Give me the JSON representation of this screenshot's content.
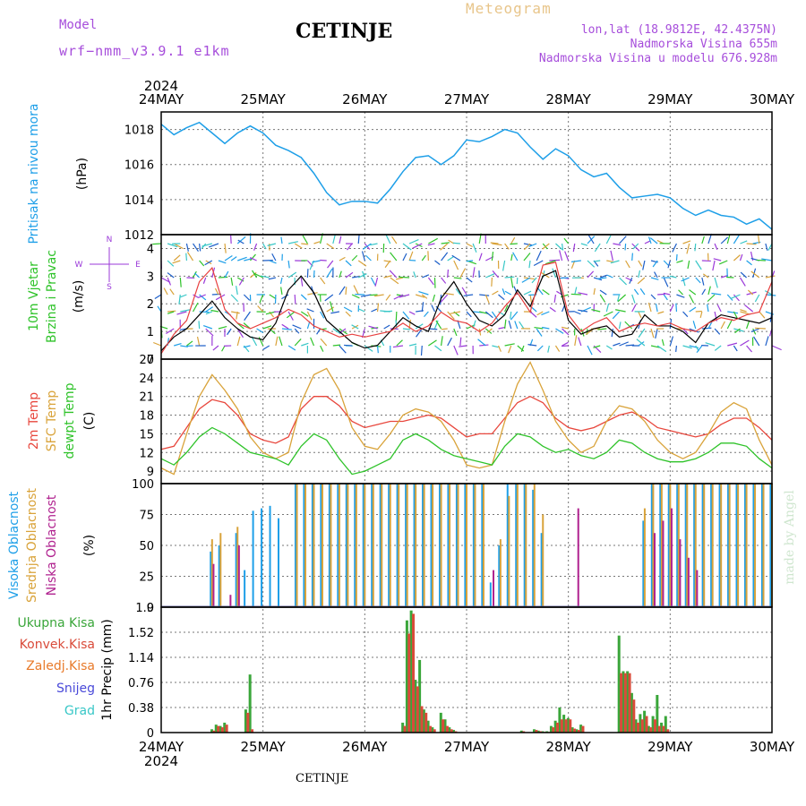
{
  "header": {
    "model_label": "Model",
    "model_name": "wrf−nmm_v3.9.1  e1km",
    "station": "CETINJE",
    "meteogram_label": "Meteogram",
    "lonlat": "lon,lat (18.9812E, 42.4375N)",
    "elevation": "Nadmorska Visina 655m",
    "model_elevation": "Nadmorska Visina u modelu 676.928m",
    "year": "2024",
    "footer_station": "CETINJE",
    "credit": "made by Angel"
  },
  "colors": {
    "pressure": "#1e9fe8",
    "temp": "#e8473d",
    "sfc": "#d9a33a",
    "dew": "#2fc32a",
    "high_cloud": "#1e9fe8",
    "mid_cloud": "#d9a33a",
    "low_cloud": "#b0228f",
    "total_precip": "#3aa63a",
    "conv_precip": "#d94b3a",
    "frozen": "#e87a2a",
    "snow": "#4a4ad9",
    "grad": "#38c7c7",
    "wind_speed": "#000000",
    "gust": "#e84040",
    "wind_legend": "#9b3ad9"
  },
  "x_axis": {
    "start": "2024-05-24 00:00",
    "end": "2024-05-30 00:00",
    "ticks": [
      "24MAY",
      "25MAY",
      "26MAY",
      "27MAY",
      "28MAY",
      "29MAY",
      "30MAY"
    ],
    "year_label": "2024"
  },
  "wind_legend": {
    "n": "N",
    "s": "S",
    "w": "W",
    "e": "E"
  },
  "chart_data": [
    {
      "type": "line",
      "panel": "pressure",
      "ylabel": [
        "Pritisak na nivou mora",
        "(hPa)"
      ],
      "ylim": [
        1012,
        1019
      ],
      "yticks": [
        1012,
        1014,
        1016,
        1018
      ],
      "grid": true,
      "x_hours": [
        0,
        3,
        6,
        9,
        12,
        15,
        18,
        21,
        24,
        27,
        30,
        33,
        36,
        39,
        42,
        45,
        48,
        51,
        54,
        57,
        60,
        63,
        66,
        69,
        72,
        75,
        78,
        81,
        84,
        87,
        90,
        93,
        96,
        99,
        102,
        105,
        108,
        111,
        114,
        117,
        120,
        123,
        126,
        129,
        132,
        135,
        138,
        141,
        144
      ],
      "series": [
        {
          "values": [
            1018.3,
            1017.7,
            1018.1,
            1018.4,
            1017.8,
            1017.2,
            1017.8,
            1018.2,
            1017.8,
            1017.1,
            1016.8,
            1016.4,
            1015.5,
            1014.4,
            1013.7,
            1013.9,
            1013.9,
            1013.8,
            1014.6,
            1015.6,
            1016.4,
            1016.5,
            1016,
            1016.5,
            1017.4,
            1017.3,
            1017.6,
            1018,
            1017.8,
            1017,
            1016.3,
            1016.9,
            1016.5,
            1015.7,
            1015.3,
            1015.5,
            1014.7,
            1014.1,
            1014.2,
            1014.3,
            1014.1,
            1013.5,
            1013.1,
            1013.4,
            1013.1,
            1013,
            1012.6,
            1012.9,
            1012.3
          ]
        }
      ]
    },
    {
      "type": "line",
      "panel": "wind",
      "ylabel": [
        "10m Vjetar",
        "Brzina i Pravac",
        "(m/s)"
      ],
      "ylim": [
        0,
        4.5
      ],
      "yticks": [
        0,
        1,
        2,
        3,
        4
      ],
      "grid": true,
      "x_hours": [
        0,
        3,
        6,
        9,
        12,
        15,
        18,
        21,
        24,
        27,
        30,
        33,
        36,
        39,
        42,
        45,
        48,
        51,
        54,
        57,
        60,
        63,
        66,
        69,
        72,
        75,
        78,
        81,
        84,
        87,
        90,
        93,
        96,
        99,
        102,
        105,
        108,
        111,
        114,
        117,
        120,
        123,
        126,
        129,
        132,
        135,
        138,
        141,
        144
      ],
      "series": [
        {
          "name": "speed",
          "values": [
            0.3,
            0.8,
            1.1,
            1.6,
            2.1,
            1.5,
            1.1,
            0.8,
            0.7,
            1.3,
            2.5,
            3.0,
            2.4,
            1.4,
            1.0,
            0.6,
            0.4,
            0.5,
            1.0,
            1.5,
            1.2,
            1.0,
            2.2,
            2.8,
            2.0,
            1.4,
            1.2,
            1.6,
            2.5,
            1.9,
            3.0,
            3.2,
            1.4,
            0.9,
            1.1,
            1.2,
            0.8,
            0.9,
            1.6,
            1.2,
            1.2,
            1.0,
            0.6,
            1.3,
            1.6,
            1.5,
            1.4,
            1.3,
            1.5
          ]
        },
        {
          "name": "gust",
          "values": [
            0.2,
            0.9,
            1.4,
            2.8,
            3.3,
            1.8,
            1.3,
            1.1,
            1.3,
            1.5,
            1.8,
            1.6,
            1.2,
            1.0,
            0.8,
            0.9,
            0.8,
            0.9,
            1.0,
            1.3,
            1.0,
            1.2,
            1.7,
            1.4,
            1.3,
            1.0,
            1.3,
            1.9,
            2.4,
            1.7,
            3.4,
            3.5,
            1.6,
            1.0,
            1.3,
            1.5,
            1.0,
            1.2,
            1.3,
            1.2,
            1.3,
            1.1,
            1.0,
            1.3,
            1.5,
            1.4,
            1.6,
            1.7,
            2.8
          ]
        }
      ]
    },
    {
      "type": "line",
      "panel": "temperature",
      "ylabel": [
        "2m Temp",
        "SFC Temp",
        "dewpt Temp",
        "(C)"
      ],
      "ylim": [
        7,
        27
      ],
      "yticks": [
        9,
        12,
        15,
        18,
        21,
        24,
        27
      ],
      "grid": true,
      "x_hours": [
        0,
        3,
        6,
        9,
        12,
        15,
        18,
        21,
        24,
        27,
        30,
        33,
        36,
        39,
        42,
        45,
        48,
        51,
        54,
        57,
        60,
        63,
        66,
        69,
        72,
        75,
        78,
        81,
        84,
        87,
        90,
        93,
        96,
        99,
        102,
        105,
        108,
        111,
        114,
        117,
        120,
        123,
        126,
        129,
        132,
        135,
        138,
        141,
        144
      ],
      "series": [
        {
          "name": "2m Temp",
          "values": [
            12.5,
            13,
            16,
            19,
            20.5,
            20,
            18,
            15,
            14,
            13.5,
            14.5,
            19,
            21,
            21,
            19.5,
            17,
            16,
            16.5,
            17,
            17,
            17.5,
            18,
            17.5,
            16,
            14.5,
            15,
            15,
            17.5,
            20,
            21,
            20,
            17.5,
            16,
            15.5,
            16,
            17,
            18,
            18.5,
            17.5,
            16,
            15.5,
            15,
            14.5,
            15,
            16.5,
            17.5,
            17.5,
            16,
            14
          ]
        },
        {
          "name": "SFC Temp",
          "values": [
            9.5,
            8.5,
            15,
            21,
            24.5,
            22,
            19,
            14.5,
            12,
            11,
            12,
            20,
            24.5,
            25.5,
            22,
            16,
            13,
            12.5,
            15,
            18,
            19,
            18.5,
            17,
            14,
            10,
            9.5,
            10,
            17,
            23,
            26.5,
            22,
            17,
            14,
            12,
            13,
            17,
            19.5,
            19,
            17,
            14,
            12,
            11,
            12,
            15,
            18.5,
            20,
            19,
            14,
            10
          ]
        },
        {
          "name": "dewpt Temp",
          "values": [
            11,
            10,
            12,
            14.5,
            16,
            15,
            13.5,
            12,
            11.5,
            11,
            10,
            13,
            15,
            14,
            11,
            8.5,
            9,
            10,
            11,
            14,
            15,
            14,
            12.5,
            11.5,
            11,
            10.5,
            10,
            13,
            15,
            14.5,
            13,
            12,
            12.5,
            11.5,
            11,
            12,
            14,
            13.5,
            12,
            11,
            10.5,
            10.5,
            11,
            12,
            13.5,
            13.5,
            13,
            11,
            9.5
          ]
        }
      ]
    },
    {
      "type": "bar",
      "panel": "clouds",
      "ylabel": [
        "Visoka Oblacnost",
        "Srednja Oblacnost",
        "Niska Oblacnost",
        "(%)"
      ],
      "ylim": [
        0,
        100
      ],
      "yticks": [
        0,
        25,
        50,
        75,
        100
      ],
      "grid": true,
      "x_hours": [
        12,
        14,
        16,
        18,
        20,
        22,
        24,
        26,
        28,
        30,
        32,
        34,
        36,
        38,
        40,
        42,
        44,
        46,
        48,
        50,
        52,
        54,
        56,
        58,
        60,
        62,
        64,
        66,
        68,
        70,
        72,
        74,
        76,
        78,
        80,
        82,
        84,
        86,
        88,
        90,
        92,
        94,
        96,
        98,
        100,
        102,
        104,
        106,
        108,
        110,
        112,
        114,
        116,
        118,
        120,
        122,
        124,
        126,
        128,
        130,
        132,
        134,
        136,
        138,
        140,
        142,
        144
      ],
      "series": [
        {
          "name": "Visoka Oblacnost",
          "values": [
            45,
            50,
            0,
            60,
            30,
            78,
            80,
            82,
            72,
            0,
            100,
            100,
            100,
            100,
            100,
            100,
            100,
            100,
            100,
            100,
            100,
            100,
            100,
            100,
            100,
            100,
            100,
            100,
            100,
            100,
            100,
            100,
            100,
            20,
            50,
            100,
            100,
            100,
            95,
            60,
            0,
            0,
            0,
            0,
            0,
            0,
            0,
            0,
            0,
            0,
            0,
            70,
            100,
            100,
            100,
            100,
            100,
            100,
            100,
            100,
            100,
            100,
            100,
            100,
            100,
            100,
            100
          ]
        },
        {
          "name": "Srednja Oblacnost",
          "values": [
            55,
            60,
            0,
            65,
            0,
            0,
            0,
            0,
            0,
            0,
            100,
            100,
            100,
            100,
            100,
            100,
            100,
            100,
            100,
            100,
            100,
            100,
            100,
            100,
            100,
            100,
            100,
            100,
            100,
            100,
            100,
            100,
            100,
            0,
            55,
            90,
            100,
            100,
            100,
            75,
            0,
            0,
            0,
            0,
            0,
            0,
            0,
            0,
            0,
            0,
            0,
            80,
            100,
            100,
            100,
            100,
            100,
            100,
            100,
            100,
            100,
            100,
            100,
            100,
            100,
            100,
            100
          ]
        },
        {
          "name": "Niska Oblacnost",
          "values": [
            35,
            0,
            10,
            50,
            0,
            0,
            0,
            0,
            0,
            0,
            0,
            0,
            0,
            0,
            0,
            0,
            0,
            0,
            0,
            0,
            0,
            0,
            0,
            0,
            0,
            0,
            0,
            0,
            0,
            0,
            0,
            0,
            0,
            30,
            0,
            0,
            0,
            0,
            0,
            0,
            0,
            0,
            0,
            80,
            0,
            0,
            0,
            0,
            0,
            0,
            0,
            0,
            60,
            70,
            80,
            55,
            40,
            30,
            0,
            0,
            0,
            0,
            0,
            0,
            0,
            0,
            0
          ]
        }
      ]
    },
    {
      "type": "bar",
      "panel": "precipitation",
      "ylabel": [
        "Ukupna Kisa",
        "Konvek.Kisa",
        "Zaledj.Kisa",
        "Snijeg",
        "Grad",
        "1hr Precip (mm)"
      ],
      "ylim": [
        0,
        1.9
      ],
      "yticks": [
        0,
        0.38,
        0.76,
        1.14,
        1.52,
        1.9
      ],
      "grid": true,
      "x_hours": [
        12,
        13,
        14,
        15,
        20,
        21,
        57,
        58,
        59,
        60,
        61,
        62,
        63,
        64,
        66,
        67,
        68,
        69,
        85,
        88,
        89,
        90,
        91,
        92,
        93,
        94,
        95,
        96,
        97,
        98,
        99,
        108,
        109,
        110,
        111,
        112,
        113,
        114,
        115,
        116,
        117,
        118,
        119
      ],
      "series": [
        {
          "name": "Ukupna Kisa",
          "values": [
            0.05,
            0.12,
            0.1,
            0.15,
            0.35,
            0.88,
            0.15,
            1.7,
            1.85,
            0.8,
            1.1,
            0.35,
            0.18,
            0.08,
            0.3,
            0.2,
            0.08,
            0.04,
            0.03,
            0.05,
            0.03,
            0.02,
            0.02,
            0.1,
            0.18,
            0.38,
            0.27,
            0.22,
            0.08,
            0.05,
            0.12,
            1.47,
            0.93,
            0.93,
            0.6,
            0.2,
            0.28,
            0.33,
            0.1,
            0.25,
            0.57,
            0.15,
            0.25
          ]
        },
        {
          "name": "Konvek.Kisa",
          "values": [
            0.03,
            0.1,
            0.08,
            0.12,
            0.3,
            0.05,
            0.1,
            1.5,
            1.8,
            0.7,
            0.4,
            0.3,
            0.1,
            0.05,
            0.2,
            0.1,
            0.05,
            0.02,
            0.02,
            0.04,
            0.02,
            0.01,
            0.01,
            0.08,
            0.15,
            0.2,
            0.2,
            0.2,
            0.06,
            0.04,
            0.1,
            0.9,
            0.9,
            0.9,
            0.5,
            0.15,
            0.2,
            0.25,
            0.08,
            0.2,
            0.1,
            0.1,
            0.05
          ]
        }
      ]
    }
  ]
}
